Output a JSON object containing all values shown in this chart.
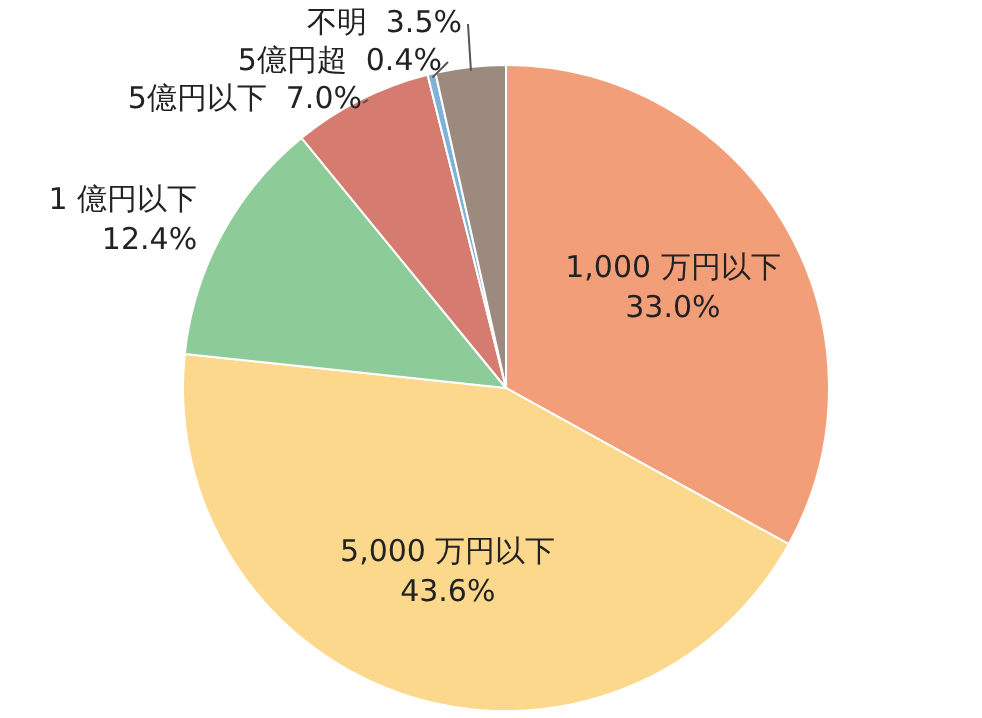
{
  "chart_data": {
    "type": "pie",
    "categories": [
      "1,000 万円以下",
      "5,000 万円以下",
      "1 億円以下",
      "5億円以下",
      "5億円超",
      "不明"
    ],
    "values": [
      33.0,
      43.6,
      12.4,
      7.0,
      0.4,
      3.5
    ],
    "value_labels": [
      "33.0%",
      "43.6%",
      "12.4%",
      "7.0%",
      "0.4%",
      "3.5%"
    ],
    "colors": [
      "#f29e79",
      "#fbd88c",
      "#8dcb98",
      "#d57b6f",
      "#7fb2d8",
      "#9c8a7f"
    ]
  }
}
